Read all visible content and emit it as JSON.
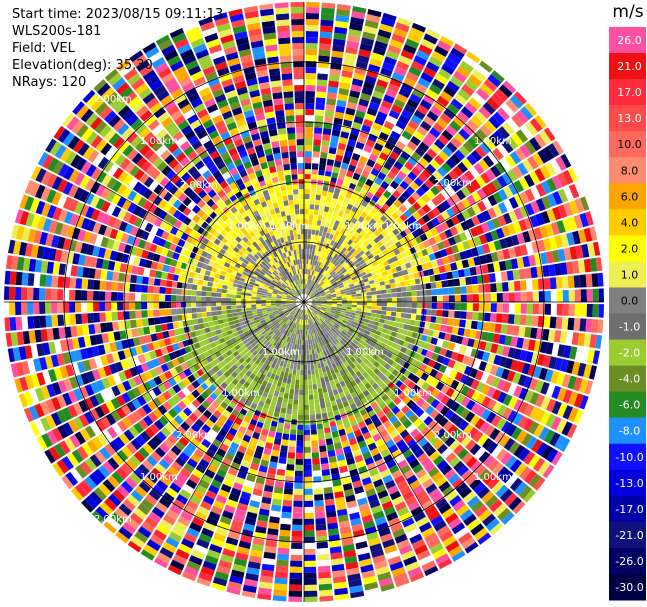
{
  "info": {
    "start_time": "Start time: 2023/08/15 09:11:13",
    "instrument": "WLS200s-181",
    "field": "Field: VEL",
    "elevation": "Elevation(deg): 35.30",
    "nrays": "NRays: 120"
  },
  "chart_data": {
    "type": "heatmap",
    "projection": "polar-ppi",
    "field": "VEL",
    "unit": "m/s",
    "n_rays": 120,
    "range_rings_km": [
      0.5,
      1.0,
      1.5,
      2.0
    ],
    "range_ring_labels": [
      "1.00km",
      "1.00km",
      "1.00km",
      "1.00km",
      "2.00km",
      "2.00km",
      "2.00km",
      "2.00km",
      "1.00km",
      "1.00km",
      "1.00km",
      "1.00km",
      "1.00km",
      "1.00km",
      "1.00km",
      "1.00km",
      "2.00km",
      "2.00km"
    ],
    "colorbar": {
      "label": "m/s",
      "ticks": [
        "26.0",
        "21.0",
        "17.0",
        "13.0",
        "10.0",
        "8.0",
        "6.0",
        "4.0",
        "2.0",
        "1.0",
        "0.0",
        "-1.0",
        "-2.0",
        "-4.0",
        "-6.0",
        "-8.0",
        "-10.0",
        "-13.0",
        "-17.0",
        "-21.0",
        "-26.0",
        "-30.0"
      ],
      "colors": [
        "#ff4fa0",
        "#ee1111",
        "#ff2a3c",
        "#ff4a4a",
        "#ff6a5e",
        "#ff8c70",
        "#ffa500",
        "#ffcc00",
        "#ffff00",
        "#eeee55",
        "#808080",
        "#6e6e6e",
        "#9acd32",
        "#6b8e23",
        "#228b22",
        "#1e90ff",
        "#1010ff",
        "#0000dd",
        "#0000aa",
        "#10107a",
        "#000066",
        "#000044"
      ]
    },
    "colors": {
      "grid": "#000000",
      "background": "#ffffff"
    }
  }
}
